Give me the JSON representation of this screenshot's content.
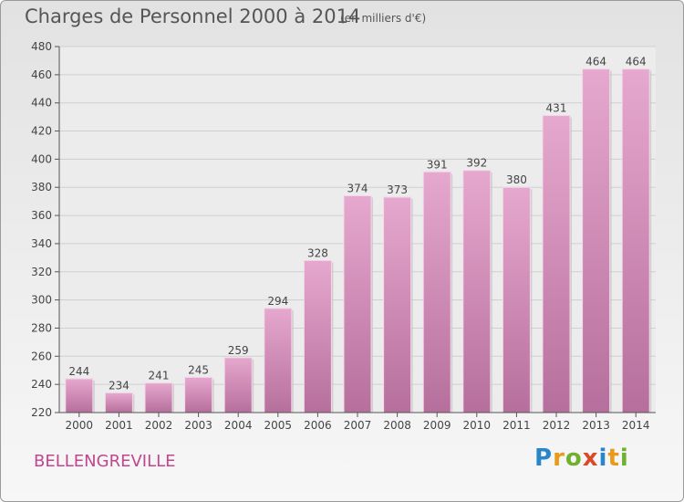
{
  "chart_data": {
    "type": "bar",
    "title": "Charges de Personnel 2000 à 2014",
    "subtitle": "(en milliers d'€)",
    "categories": [
      "2000",
      "2001",
      "2002",
      "2003",
      "2004",
      "2005",
      "2006",
      "2007",
      "2008",
      "2009",
      "2010",
      "2011",
      "2012",
      "2013",
      "2014"
    ],
    "values": [
      244,
      234,
      241,
      245,
      259,
      294,
      328,
      374,
      373,
      391,
      392,
      380,
      431,
      464,
      464
    ],
    "ylim": [
      220,
      480
    ],
    "yticks": [
      220,
      240,
      260,
      280,
      300,
      320,
      340,
      360,
      380,
      400,
      420,
      440,
      460,
      480
    ],
    "grid": true,
    "bar_color": "#c97aa9"
  },
  "commune": "BELLENGREVILLE",
  "logo": {
    "letters": [
      "P",
      "r",
      "o",
      "x",
      "i",
      "t",
      "i"
    ],
    "colors": [
      "#2a86c9",
      "#e99a1b",
      "#6fb02f",
      "#d94a2a",
      "#2a86c9",
      "#e99a1b",
      "#6fb02f"
    ]
  }
}
